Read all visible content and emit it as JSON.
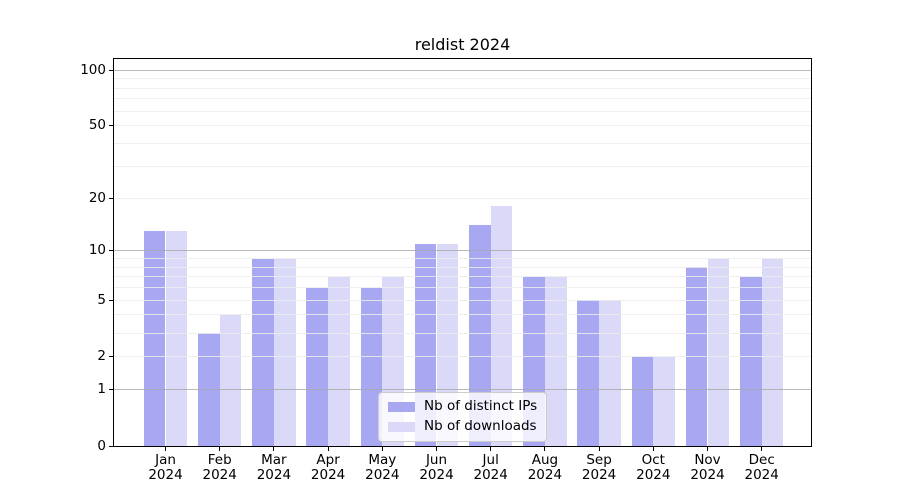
{
  "chart_data": {
    "type": "bar",
    "title": "reldist 2024",
    "yscale": "log1p",
    "grid": true,
    "categories": [
      "Jan",
      "Feb",
      "Mar",
      "Apr",
      "May",
      "Jun",
      "Jul",
      "Aug",
      "Sep",
      "Oct",
      "Nov",
      "Dec"
    ],
    "category_year": "2024",
    "series": [
      {
        "name": "Nb of distinct IPs",
        "color": "#a8a8f2",
        "values": [
          13,
          3,
          9,
          6,
          6,
          11,
          14,
          7,
          5,
          2,
          8,
          7
        ]
      },
      {
        "name": "Nb of downloads",
        "color": "#dadaf8",
        "values": [
          13,
          4,
          9,
          7,
          7,
          11,
          18,
          7,
          5,
          2,
          9,
          9
        ]
      }
    ],
    "ylim": [
      0,
      115
    ],
    "xlabel": "",
    "ylabel": "",
    "y_tick_values": [
      100,
      50,
      20,
      10,
      5,
      2,
      1,
      0
    ],
    "y_tick_labels": [
      "100",
      "50",
      "20",
      "10",
      "5",
      "2",
      "1",
      "0"
    ],
    "y_major_gridlines": [
      100,
      10,
      1
    ],
    "y_minor_gridlines": [
      90,
      80,
      70,
      60,
      50,
      40,
      30,
      20,
      9,
      8,
      7,
      6,
      5,
      4,
      3,
      2
    ],
    "legend_position": "lower center"
  },
  "colors": {
    "major_grid": "#a8a8a8",
    "minor_grid": "#ececec",
    "axis": "#000000",
    "legend_border": "#cccccc"
  }
}
